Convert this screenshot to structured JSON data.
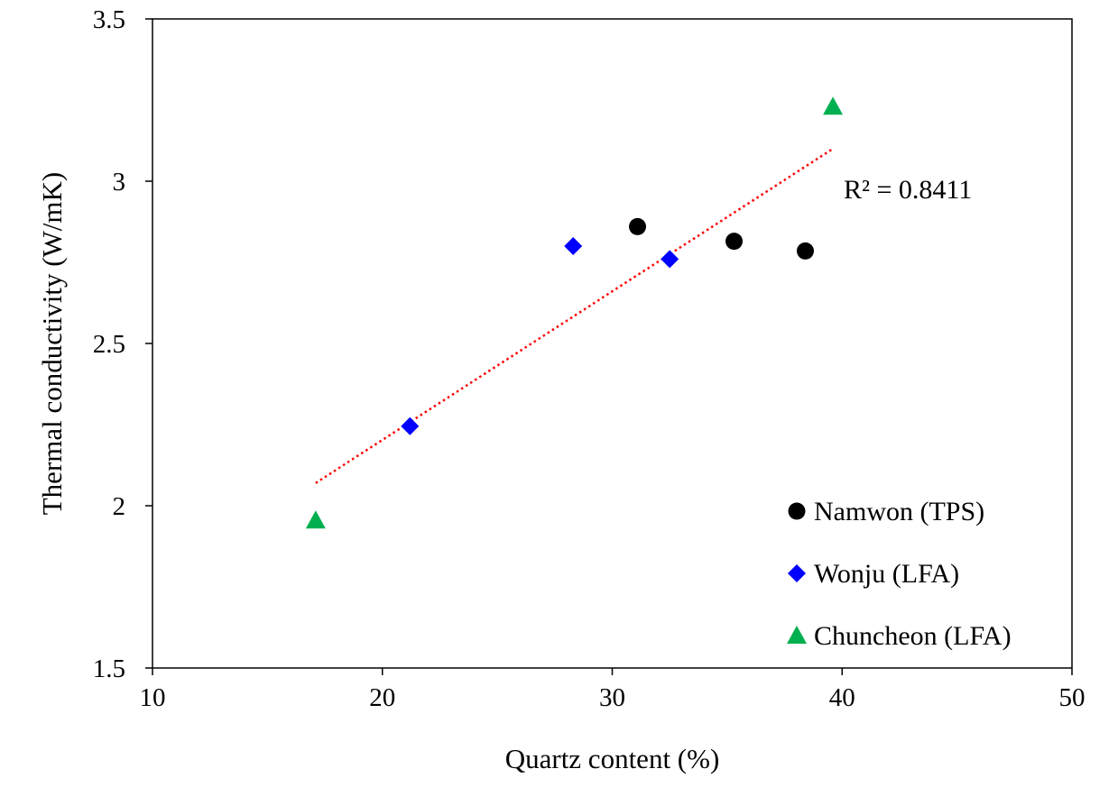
{
  "chart_data": {
    "type": "scatter",
    "xlabel": "Quartz content (%)",
    "ylabel": "Thermal conductivity (W/mK)",
    "xlim": [
      10,
      50
    ],
    "ylim": [
      1.5,
      3.5
    ],
    "x_ticks": [
      10,
      20,
      30,
      40,
      50
    ],
    "y_ticks": [
      1.5,
      2,
      2.5,
      3,
      3.5
    ],
    "x_tick_labels": [
      "10",
      "20",
      "30",
      "40",
      "50"
    ],
    "y_tick_labels": [
      "1.5",
      "2",
      "2.5",
      "3",
      "3.5"
    ],
    "grid": false,
    "legend_position": "bottom-right",
    "series": [
      {
        "name": "Namwon (TPS)",
        "marker": "circle",
        "color": "#000000",
        "points": [
          [
            31.1,
            2.86
          ],
          [
            35.3,
            2.815
          ],
          [
            38.4,
            2.785
          ]
        ]
      },
      {
        "name": "Wonju (LFA)",
        "marker": "diamond",
        "color": "#0000ff",
        "points": [
          [
            21.2,
            2.245
          ],
          [
            28.3,
            2.8
          ],
          [
            32.5,
            2.76
          ]
        ]
      },
      {
        "name": "Chuncheon (LFA)",
        "marker": "triangle",
        "color": "#00b050",
        "points": [
          [
            17.1,
            1.955
          ],
          [
            39.6,
            3.23
          ]
        ]
      }
    ],
    "trendline": {
      "type": "linear",
      "style": "dotted",
      "color": "#ff0000",
      "x_range": [
        17.1,
        39.6
      ],
      "y_range": [
        2.07,
        3.1
      ]
    },
    "annotations": [
      {
        "text": "R² = 0.8411"
      }
    ]
  }
}
